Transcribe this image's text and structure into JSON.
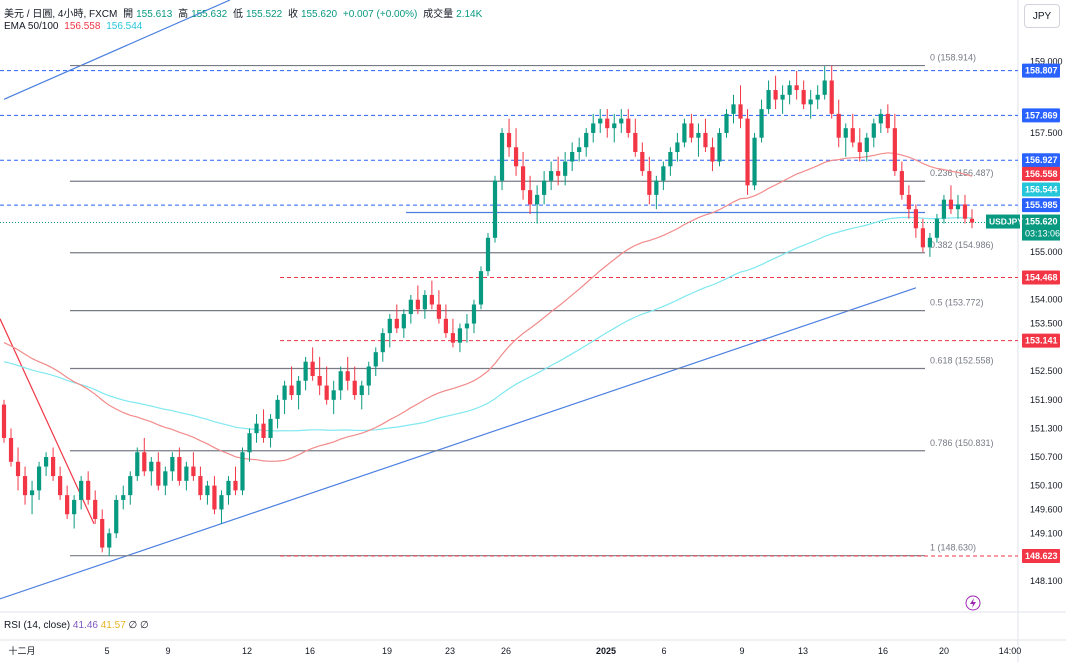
{
  "header": {
    "symbol": "美元 / 日圓, 4小時, FXCM",
    "open_label": "開",
    "open": "155.613",
    "high_label": "高",
    "high": "155.632",
    "low_label": "低",
    "low": "155.522",
    "close_label": "收",
    "close": "155.620",
    "change": "+0.007 (+0.00%)",
    "volume_label": "成交量",
    "volume": "2.14K",
    "ema_label": "EMA 50/100",
    "ema50": "156.558",
    "ema100": "156.544"
  },
  "currency_button": "JPY",
  "rsi": {
    "label": "RSI (14, close)",
    "v1": "41.46",
    "v2": "41.57",
    "v3": "∅",
    "v4": "∅"
  },
  "colors": {
    "up": "#089981",
    "down": "#f23645",
    "ema50": "#f23645",
    "ema100": "#7fe8f0",
    "trend": "#4a7fe0",
    "fib": "#787b86",
    "price_tag": "#089981"
  },
  "chart_data": {
    "type": "candlestick",
    "ylim": [
      147.7,
      159.45
    ],
    "y_ticks": [
      "159.000",
      "157.500",
      "155.000",
      "154.000",
      "153.500",
      "152.500",
      "151.900",
      "151.300",
      "150.700",
      "150.100",
      "149.600",
      "149.100",
      "148.100"
    ],
    "x_ticks": [
      "十二月",
      "5",
      "9",
      "12",
      "16",
      "19",
      "23",
      "26",
      "2025",
      "6",
      "9",
      "13",
      "16",
      "20",
      "14:00"
    ],
    "fib_levels": [
      {
        "label": "0 (158.914)",
        "value": 158.914
      },
      {
        "label": "0.236 (156.487)",
        "value": 156.487
      },
      {
        "label": "0.382 (154.986)",
        "value": 154.986
      },
      {
        "label": "0.5 (153.772)",
        "value": 153.772
      },
      {
        "label": "0.618 (152.558)",
        "value": 152.558
      },
      {
        "label": "0.786 (150.831)",
        "value": 150.831
      },
      {
        "label": "1 (148.630)",
        "value": 148.63
      }
    ],
    "horizontal_lines": [
      {
        "value": 158.807,
        "label": "158.807",
        "style": "dashed",
        "color": "#2962ff"
      },
      {
        "value": 157.869,
        "label": "157.869",
        "style": "dashed",
        "color": "#2962ff"
      },
      {
        "value": 156.927,
        "label": "156.927",
        "style": "dashed",
        "color": "#2962ff"
      },
      {
        "value": 155.985,
        "label": "155.985",
        "style": "dashed",
        "color": "#2962ff"
      },
      {
        "value": 154.468,
        "label": "154.468",
        "style": "dashed",
        "color": "#f23645"
      },
      {
        "value": 153.141,
        "label": "153.141",
        "style": "dashed",
        "color": "#f23645"
      },
      {
        "value": 148.623,
        "label": "148.623",
        "style": "dashed",
        "color": "#f23645"
      }
    ],
    "price_tags": [
      {
        "value": 156.558,
        "label": "156.558",
        "color": "#f23645"
      },
      {
        "value": 156.544,
        "label": "156.544",
        "color": "#26c6da"
      },
      {
        "value": 155.62,
        "label": "155.620",
        "sub": "03:13:06",
        "color": "#089981"
      }
    ],
    "symbol_tag": "USDJPY",
    "last_price": 155.62,
    "candles": [
      [
        151.8,
        151.9,
        151.0,
        151.1
      ],
      [
        151.1,
        151.3,
        150.5,
        150.6
      ],
      [
        150.6,
        150.9,
        150.0,
        150.3
      ],
      [
        150.3,
        150.5,
        149.7,
        149.9
      ],
      [
        149.9,
        150.2,
        149.5,
        150.0
      ],
      [
        150.0,
        150.6,
        149.8,
        150.5
      ],
      [
        150.5,
        150.8,
        150.3,
        150.7
      ],
      [
        150.7,
        150.9,
        150.2,
        150.3
      ],
      [
        150.3,
        150.5,
        149.8,
        149.9
      ],
      [
        149.9,
        150.1,
        149.4,
        149.5
      ],
      [
        149.5,
        149.9,
        149.2,
        149.8
      ],
      [
        149.8,
        150.3,
        149.6,
        150.2
      ],
      [
        150.2,
        150.4,
        149.7,
        149.8
      ],
      [
        149.8,
        150.0,
        149.3,
        149.4
      ],
      [
        149.4,
        149.6,
        148.7,
        148.8
      ],
      [
        148.8,
        149.2,
        148.62,
        149.1
      ],
      [
        149.1,
        149.9,
        149.0,
        149.8
      ],
      [
        149.8,
        150.1,
        149.6,
        149.9
      ],
      [
        149.9,
        150.4,
        149.7,
        150.3
      ],
      [
        150.3,
        150.9,
        150.2,
        150.8
      ],
      [
        150.8,
        151.1,
        150.3,
        150.4
      ],
      [
        150.4,
        150.7,
        150.1,
        150.6
      ],
      [
        150.6,
        150.8,
        150.0,
        150.1
      ],
      [
        150.1,
        150.5,
        149.9,
        150.4
      ],
      [
        150.4,
        150.8,
        150.2,
        150.7
      ],
      [
        150.7,
        150.9,
        150.1,
        150.2
      ],
      [
        150.2,
        150.6,
        150.0,
        150.5
      ],
      [
        150.5,
        150.8,
        150.2,
        150.3
      ],
      [
        150.3,
        150.5,
        149.8,
        149.9
      ],
      [
        149.9,
        150.2,
        149.7,
        150.1
      ],
      [
        150.1,
        150.3,
        149.5,
        149.6
      ],
      [
        149.6,
        150.0,
        149.3,
        149.9
      ],
      [
        149.9,
        150.3,
        149.7,
        150.2
      ],
      [
        150.2,
        150.5,
        149.9,
        150.0
      ],
      [
        150.0,
        150.9,
        149.9,
        150.8
      ],
      [
        150.8,
        151.3,
        150.6,
        151.2
      ],
      [
        151.2,
        151.6,
        151.0,
        151.4
      ],
      [
        151.4,
        151.7,
        151.0,
        151.1
      ],
      [
        151.1,
        151.6,
        150.9,
        151.5
      ],
      [
        151.5,
        152.0,
        151.3,
        151.9
      ],
      [
        151.9,
        152.3,
        151.6,
        152.2
      ],
      [
        152.2,
        152.6,
        151.9,
        152.0
      ],
      [
        152.0,
        152.4,
        151.7,
        152.3
      ],
      [
        152.3,
        152.8,
        152.1,
        152.7
      ],
      [
        152.7,
        153.0,
        152.3,
        152.4
      ],
      [
        152.4,
        152.8,
        152.0,
        152.2
      ],
      [
        152.2,
        152.6,
        151.8,
        151.9
      ],
      [
        151.9,
        152.3,
        151.6,
        152.1
      ],
      [
        152.1,
        152.6,
        151.9,
        152.5
      ],
      [
        152.5,
        152.8,
        152.1,
        152.3
      ],
      [
        152.3,
        152.6,
        151.9,
        152.0
      ],
      [
        152.0,
        152.3,
        151.7,
        152.2
      ],
      [
        152.2,
        152.7,
        152.0,
        152.6
      ],
      [
        152.6,
        153.0,
        152.4,
        152.9
      ],
      [
        152.9,
        153.4,
        152.7,
        153.3
      ],
      [
        153.3,
        153.7,
        153.0,
        153.6
      ],
      [
        153.6,
        153.9,
        153.3,
        153.4
      ],
      [
        153.4,
        153.8,
        153.2,
        153.7
      ],
      [
        153.7,
        154.1,
        153.5,
        154.0
      ],
      [
        154.0,
        154.3,
        153.7,
        153.8
      ],
      [
        153.8,
        154.2,
        153.6,
        154.1
      ],
      [
        154.1,
        154.4,
        153.8,
        153.9
      ],
      [
        153.9,
        154.2,
        153.5,
        153.6
      ],
      [
        153.6,
        153.9,
        153.2,
        153.3
      ],
      [
        153.3,
        153.6,
        153.0,
        153.1
      ],
      [
        153.1,
        153.5,
        152.9,
        153.4
      ],
      [
        153.4,
        153.7,
        153.1,
        153.5
      ],
      [
        153.5,
        154.0,
        153.3,
        153.9
      ],
      [
        153.9,
        154.7,
        153.8,
        154.6
      ],
      [
        154.6,
        155.4,
        154.5,
        155.3
      ],
      [
        155.3,
        156.6,
        155.2,
        156.5
      ],
      [
        156.5,
        157.6,
        156.3,
        157.5
      ],
      [
        157.5,
        157.8,
        157.0,
        157.2
      ],
      [
        157.2,
        157.6,
        156.6,
        156.8
      ],
      [
        156.8,
        157.1,
        156.1,
        156.3
      ],
      [
        156.3,
        156.6,
        155.8,
        156.0
      ],
      [
        156.0,
        156.4,
        155.6,
        156.2
      ],
      [
        156.2,
        156.7,
        156.0,
        156.5
      ],
      [
        156.5,
        156.9,
        156.3,
        156.7
      ],
      [
        156.7,
        157.0,
        156.4,
        156.6
      ],
      [
        156.6,
        157.1,
        156.4,
        156.9
      ],
      [
        156.9,
        157.3,
        156.7,
        157.1
      ],
      [
        157.1,
        157.4,
        156.9,
        157.2
      ],
      [
        157.2,
        157.6,
        157.0,
        157.5
      ],
      [
        157.5,
        157.9,
        157.3,
        157.7
      ],
      [
        157.7,
        158.0,
        157.5,
        157.8
      ],
      [
        157.8,
        158.0,
        157.4,
        157.6
      ],
      [
        157.6,
        157.9,
        157.3,
        157.7
      ],
      [
        157.7,
        158.0,
        157.5,
        157.8
      ],
      [
        157.8,
        158.0,
        157.4,
        157.5
      ],
      [
        157.5,
        157.8,
        157.0,
        157.1
      ],
      [
        157.1,
        157.3,
        156.6,
        156.7
      ],
      [
        156.7,
        157.0,
        156.0,
        156.2
      ],
      [
        156.2,
        156.6,
        155.9,
        156.5
      ],
      [
        156.5,
        156.9,
        156.3,
        156.8
      ],
      [
        156.8,
        157.2,
        156.6,
        157.1
      ],
      [
        157.1,
        157.5,
        156.9,
        157.3
      ],
      [
        157.3,
        157.8,
        157.2,
        157.7
      ],
      [
        157.7,
        157.9,
        157.3,
        157.4
      ],
      [
        157.4,
        157.7,
        157.0,
        157.5
      ],
      [
        157.5,
        157.8,
        157.1,
        157.2
      ],
      [
        157.2,
        157.4,
        156.7,
        156.9
      ],
      [
        156.9,
        157.6,
        156.8,
        157.5
      ],
      [
        157.5,
        158.0,
        157.4,
        157.9
      ],
      [
        157.9,
        158.3,
        157.7,
        158.1
      ],
      [
        158.1,
        158.5,
        157.6,
        157.8
      ],
      [
        157.8,
        158.0,
        156.2,
        156.4
      ],
      [
        156.4,
        157.5,
        156.3,
        157.4
      ],
      [
        157.4,
        158.2,
        157.3,
        158.0
      ],
      [
        158.0,
        158.6,
        157.9,
        158.4
      ],
      [
        158.4,
        158.7,
        158.0,
        158.2
      ],
      [
        158.2,
        158.5,
        157.9,
        158.3
      ],
      [
        158.3,
        158.6,
        158.1,
        158.5
      ],
      [
        158.5,
        158.8,
        158.2,
        158.4
      ],
      [
        158.4,
        158.6,
        158.0,
        158.1
      ],
      [
        158.1,
        158.4,
        157.8,
        158.2
      ],
      [
        158.2,
        158.5,
        158.0,
        158.3
      ],
      [
        158.3,
        158.9,
        158.2,
        158.6
      ],
      [
        158.6,
        158.91,
        157.8,
        157.9
      ],
      [
        157.9,
        158.2,
        157.2,
        157.4
      ],
      [
        157.4,
        157.7,
        157.0,
        157.6
      ],
      [
        157.6,
        157.9,
        157.2,
        157.3
      ],
      [
        157.3,
        157.6,
        156.9,
        157.1
      ],
      [
        157.1,
        157.5,
        156.9,
        157.4
      ],
      [
        157.4,
        157.8,
        157.2,
        157.7
      ],
      [
        157.7,
        158.0,
        157.5,
        157.9
      ],
      [
        157.9,
        158.1,
        157.5,
        157.6
      ],
      [
        157.6,
        157.9,
        156.6,
        156.7
      ],
      [
        156.7,
        156.9,
        156.1,
        156.2
      ],
      [
        156.2,
        156.4,
        155.7,
        155.9
      ],
      [
        155.9,
        156.0,
        155.3,
        155.5
      ],
      [
        155.5,
        155.7,
        155.0,
        155.1
      ],
      [
        155.1,
        155.4,
        154.9,
        155.3
      ],
      [
        155.3,
        155.8,
        155.2,
        155.7
      ],
      [
        155.7,
        156.2,
        155.6,
        156.1
      ],
      [
        156.1,
        156.4,
        155.8,
        155.9
      ],
      [
        155.9,
        156.2,
        155.7,
        156.0
      ],
      [
        156.0,
        156.2,
        155.6,
        155.7
      ],
      [
        155.7,
        155.9,
        155.5,
        155.62
      ]
    ]
  }
}
